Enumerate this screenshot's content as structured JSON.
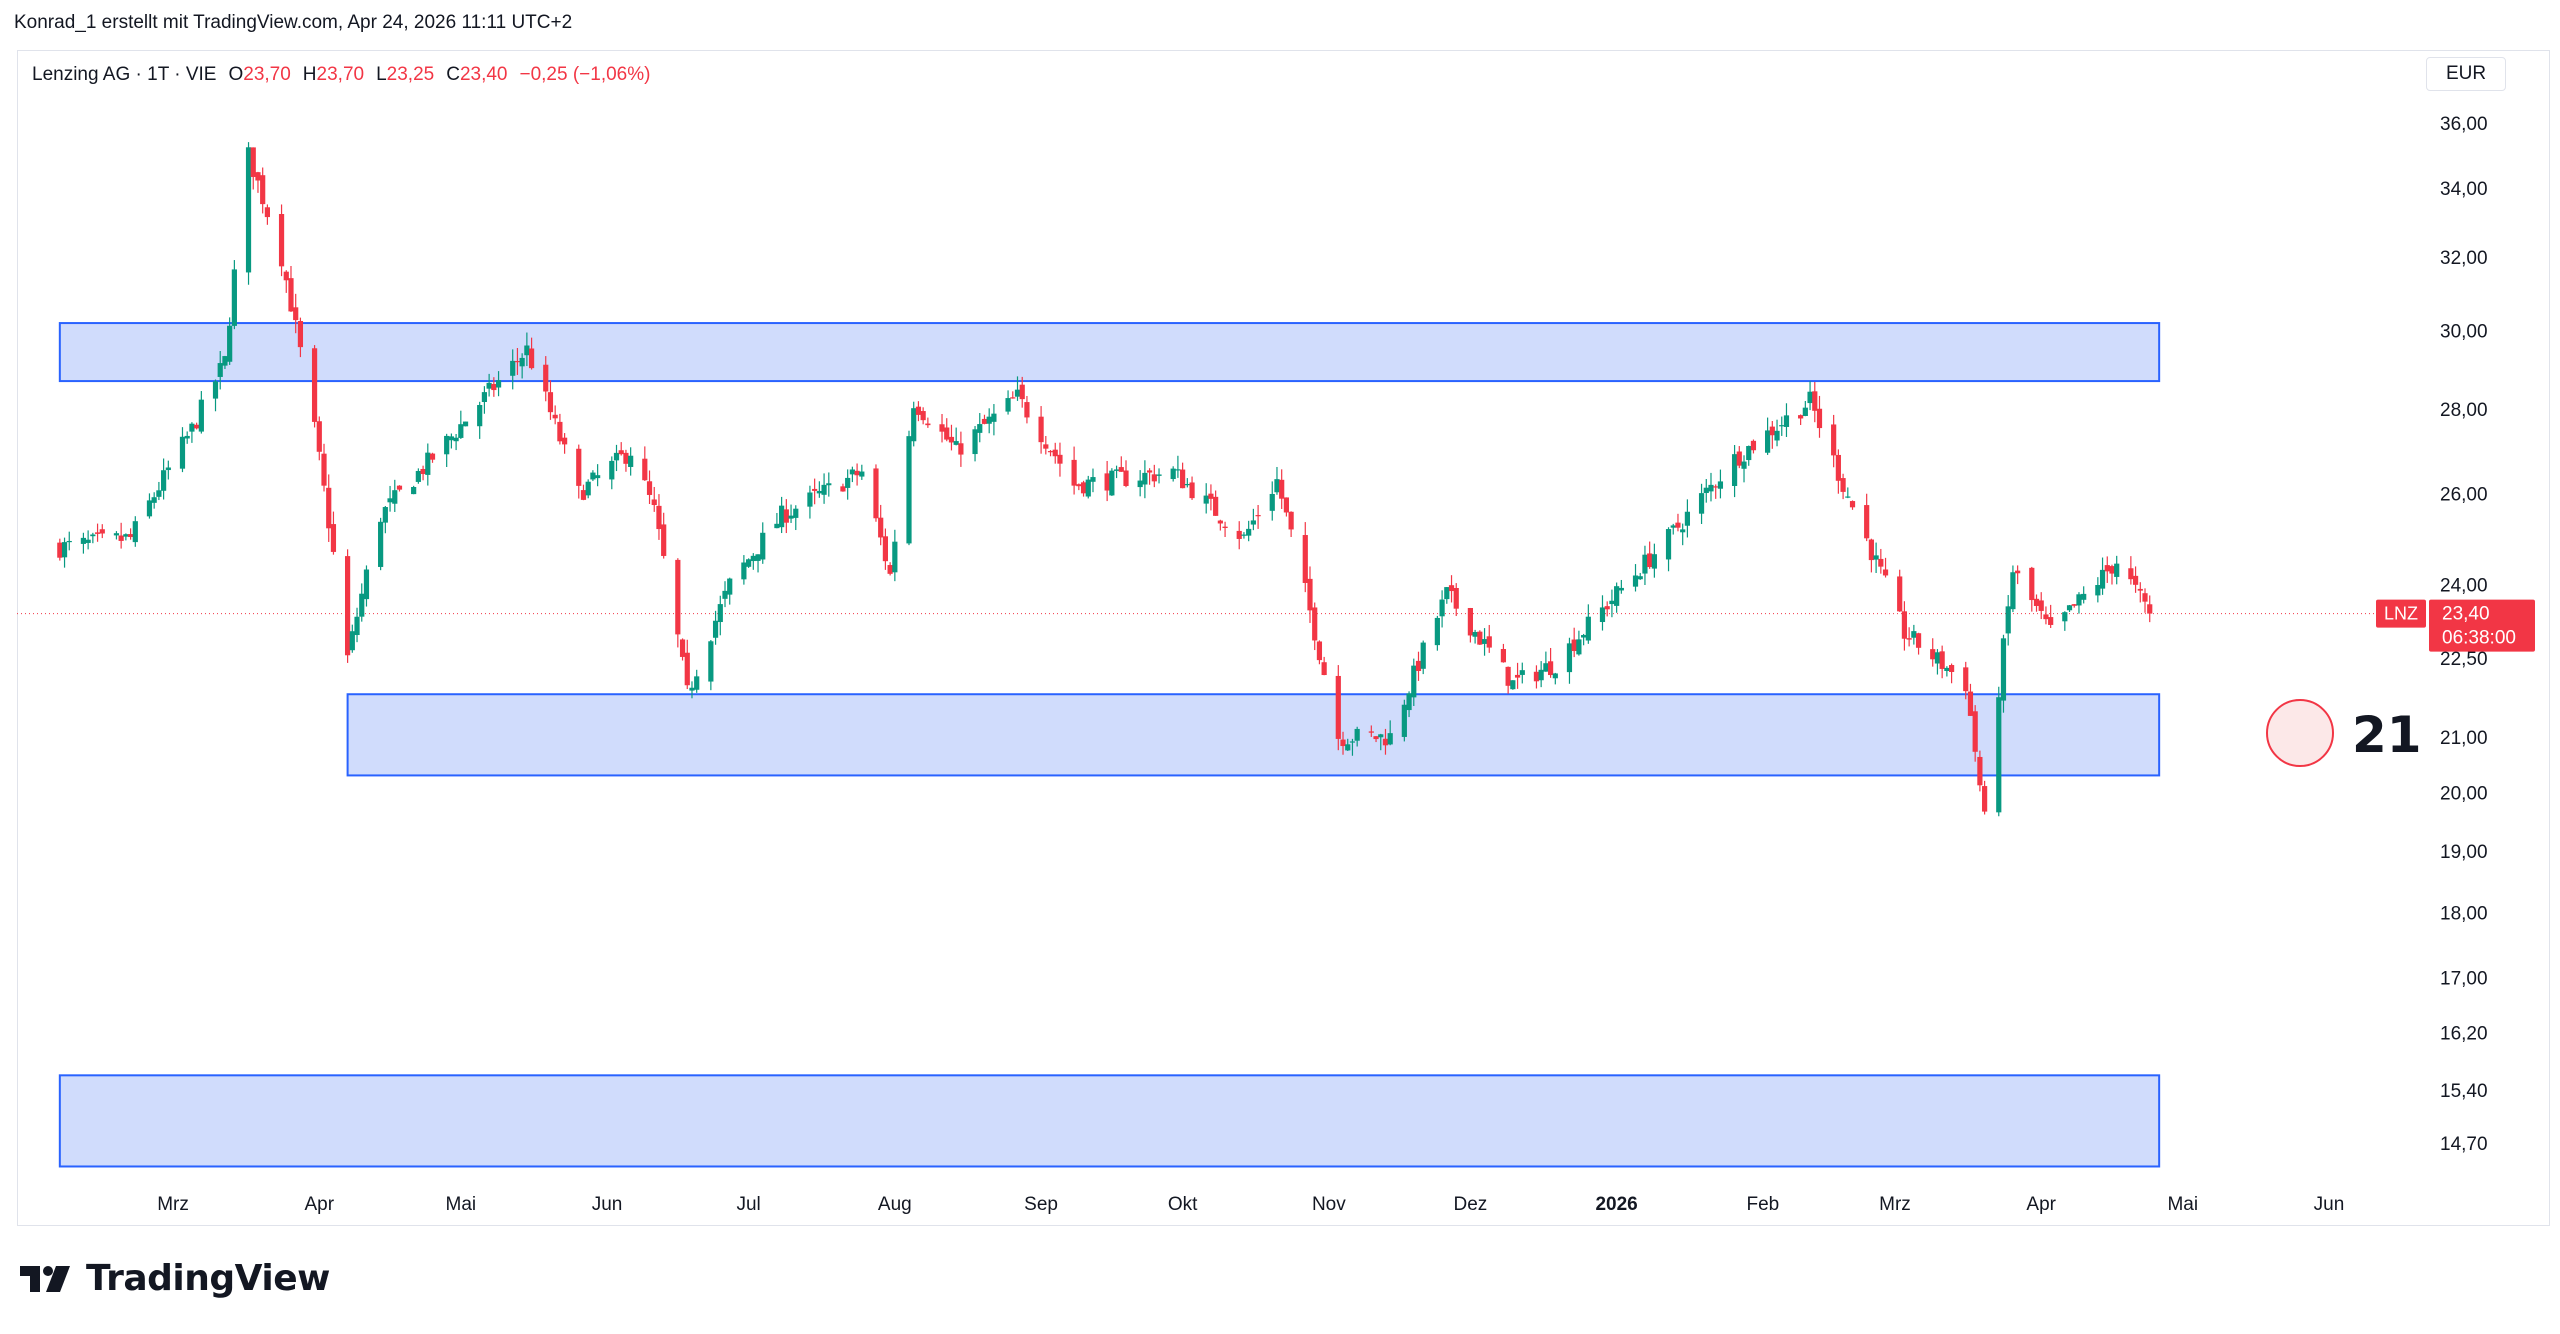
{
  "attribution": "Konrad_1 erstellt mit TradingView.com, Apr 24, 2026 11:11 UTC+2",
  "legend": {
    "symbol": "Lenzing AG · 1T · VIE",
    "open_label": "O",
    "open": "23,70",
    "high_label": "H",
    "high": "23,70",
    "low_label": "L",
    "low": "23,25",
    "close_label": "C",
    "close": "23,40",
    "change": "−0,25 (−1,06%)"
  },
  "currency": "EUR",
  "price_tag": {
    "ticker": "LNZ",
    "price": "23,40",
    "countdown": "06:38:00"
  },
  "annotation": {
    "number": "21"
  },
  "brand": "TradingView",
  "colors": {
    "up": "#089981",
    "down": "#f23645",
    "zone_fill": "#d0dcfc",
    "zone_border": "#2962ff"
  },
  "chart_data": {
    "type": "candlestick",
    "y_scale": "log",
    "y_ticks": [
      "36,00",
      "34,00",
      "32,00",
      "30,00",
      "28,00",
      "26,00",
      "24,00",
      "22,50",
      "21,00",
      "20,00",
      "19,00",
      "18,00",
      "17,00",
      "16,20",
      "15,40",
      "14,70"
    ],
    "x_ticks": [
      "Mrz",
      "Apr",
      "Mai",
      "Jun",
      "Jul",
      "Aug",
      "Sep",
      "Okt",
      "Nov",
      "Dez",
      "2026",
      "Feb",
      "Mrz",
      "Apr",
      "Mai",
      "Jun"
    ],
    "x_ticks_bold": [
      "2026"
    ],
    "zones": [
      {
        "from": "2025-02-05",
        "to": "2026-04-26",
        "low": 28.7,
        "high": 30.2
      },
      {
        "from": "2025-04-07",
        "to": "2026-04-26",
        "low": 20.3,
        "high": 21.8
      },
      {
        "from": "2025-02-05",
        "to": "2026-04-26",
        "low": 14.4,
        "high": 15.6
      }
    ],
    "last_price": 23.4,
    "price_line": 23.4,
    "anchors": [
      [
        "2025-02-05",
        24.8
      ],
      [
        "2025-02-20",
        25.0
      ],
      [
        "2025-03-05",
        27.5
      ],
      [
        "2025-03-12",
        29.2
      ],
      [
        "2025-03-17",
        35.0
      ],
      [
        "2025-03-24",
        32.0
      ],
      [
        "2025-03-31",
        27.5
      ],
      [
        "2025-04-07",
        22.5
      ],
      [
        "2025-04-14",
        25.5
      ],
      [
        "2025-04-28",
        27.2
      ],
      [
        "2025-05-15",
        29.5
      ],
      [
        "2025-05-26",
        26.0
      ],
      [
        "2025-06-06",
        27.0
      ],
      [
        "2025-06-11",
        25.6
      ],
      [
        "2025-06-18",
        21.8
      ],
      [
        "2025-06-27",
        24.0
      ],
      [
        "2025-07-08",
        25.5
      ],
      [
        "2025-07-25",
        26.5
      ],
      [
        "2025-07-31",
        24.2
      ],
      [
        "2025-08-05",
        28.2
      ],
      [
        "2025-08-14",
        27.0
      ],
      [
        "2025-08-27",
        28.3
      ],
      [
        "2025-09-08",
        26.2
      ],
      [
        "2025-09-29",
        26.5
      ],
      [
        "2025-10-14",
        25.0
      ],
      [
        "2025-10-21",
        26.3
      ],
      [
        "2025-11-03",
        21.0
      ],
      [
        "2025-11-14",
        21.0
      ],
      [
        "2025-11-26",
        23.8
      ],
      [
        "2025-12-10",
        22.0
      ],
      [
        "2025-12-19",
        22.4
      ],
      [
        "2026-01-12",
        25.0
      ],
      [
        "2026-01-26",
        26.8
      ],
      [
        "2026-02-11",
        28.2
      ],
      [
        "2026-02-18",
        26.2
      ],
      [
        "2026-03-03",
        23.0
      ],
      [
        "2026-03-16",
        22.0
      ],
      [
        "2026-03-20",
        19.5
      ],
      [
        "2026-03-26",
        24.3
      ],
      [
        "2026-04-03",
        23.0
      ],
      [
        "2026-04-17",
        24.5
      ],
      [
        "2026-04-24",
        23.4
      ]
    ]
  }
}
